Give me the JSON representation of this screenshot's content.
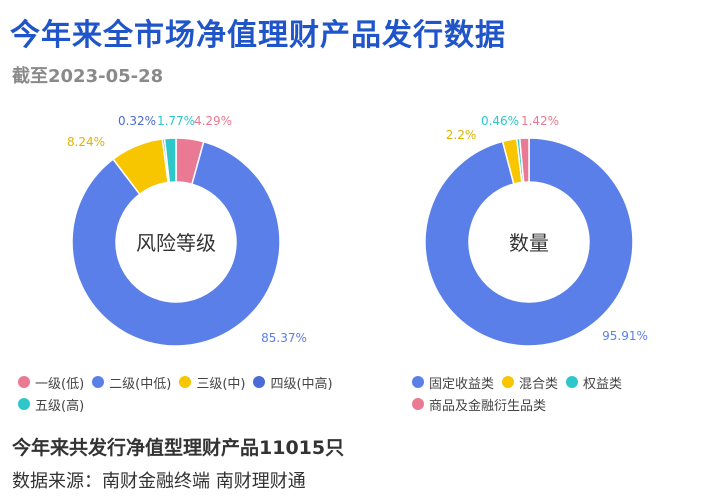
{
  "title": "今年来全市场净值理财产品发行数据",
  "subtitle": "截至2023-05-28",
  "chart_data": [
    {
      "type": "pie",
      "title": "风险等级",
      "categories": [
        "一级(低)",
        "二级(中低)",
        "三级(中)",
        "四级(中高)",
        "五级(高)"
      ],
      "values": [
        4.29,
        85.37,
        8.24,
        0.32,
        1.77
      ],
      "labels": [
        "4.29%",
        "85.37%",
        "8.24%",
        "0.32%",
        "1.77%"
      ],
      "colors": [
        "#ea7a93",
        "#5b7fe8",
        "#f7c600",
        "#4a6bd6",
        "#2ec7c9"
      ],
      "legend_position": "bottom"
    },
    {
      "type": "pie",
      "title": "数量",
      "categories": [
        "固定收益类",
        "混合类",
        "权益类",
        "商品及金融衍生品类"
      ],
      "values": [
        95.91,
        2.2,
        0.46,
        1.42
      ],
      "labels": [
        "95.91%",
        "2.2%",
        "0.46%",
        "1.42%"
      ],
      "colors": [
        "#5b7fe8",
        "#f7c600",
        "#2ec7c9",
        "#ea7a93"
      ],
      "legend_position": "bottom"
    }
  ],
  "footer": {
    "summary": "今年来共发行净值型理财产品11015只",
    "source": "数据来源：南财金融终端 南财理财通"
  }
}
